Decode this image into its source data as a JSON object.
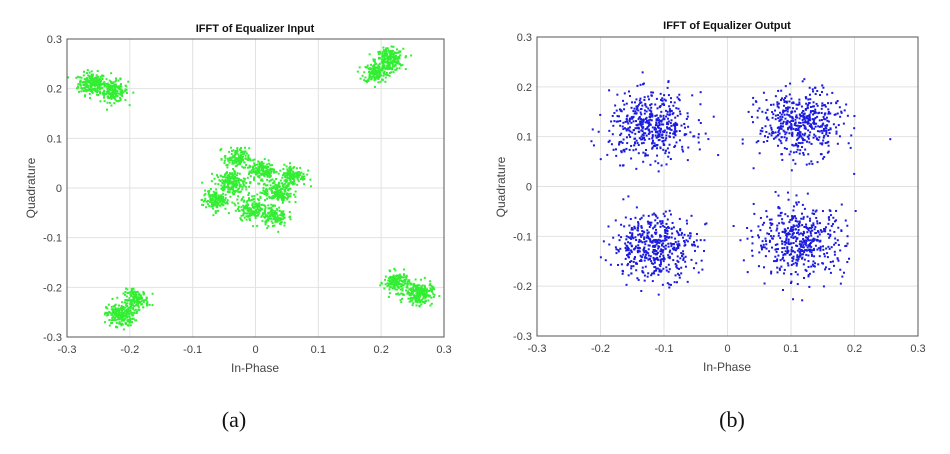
{
  "chart_data": [
    {
      "type": "scatter",
      "title": "IFFT of Equalizer Input",
      "xlabel": "In-Phase",
      "ylabel": "Quadrature",
      "xlim": [
        -0.3,
        0.3
      ],
      "ylim": [
        -0.3,
        0.3
      ],
      "xticks": [
        "-0.3",
        "-0.2",
        "-0.1",
        "0",
        "0.1",
        "0.2",
        "0.3"
      ],
      "yticks": [
        "-0.3",
        "-0.2",
        "-0.1",
        "0",
        "0.1",
        "0.2",
        "0.3"
      ],
      "grid": true,
      "color": "#33ee33",
      "caption": "(a)",
      "clusters": [
        {
          "x": -0.26,
          "y": 0.21,
          "spread": 0.011,
          "n": 220
        },
        {
          "x": -0.225,
          "y": 0.195,
          "spread": 0.011,
          "n": 160
        },
        {
          "x": 0.213,
          "y": 0.258,
          "spread": 0.011,
          "n": 220
        },
        {
          "x": 0.192,
          "y": 0.232,
          "spread": 0.01,
          "n": 150
        },
        {
          "x": -0.215,
          "y": -0.256,
          "spread": 0.011,
          "n": 220
        },
        {
          "x": -0.19,
          "y": -0.225,
          "spread": 0.01,
          "n": 150
        },
        {
          "x": 0.225,
          "y": -0.19,
          "spread": 0.01,
          "n": 160
        },
        {
          "x": 0.26,
          "y": -0.213,
          "spread": 0.011,
          "n": 220
        },
        {
          "x": -0.03,
          "y": 0.06,
          "spread": 0.01,
          "n": 130
        },
        {
          "x": 0.01,
          "y": 0.035,
          "spread": 0.011,
          "n": 150
        },
        {
          "x": 0.06,
          "y": 0.025,
          "spread": 0.01,
          "n": 130
        },
        {
          "x": -0.04,
          "y": 0.01,
          "spread": 0.012,
          "n": 180
        },
        {
          "x": -0.065,
          "y": -0.025,
          "spread": 0.01,
          "n": 130
        },
        {
          "x": 0.035,
          "y": -0.008,
          "spread": 0.012,
          "n": 180
        },
        {
          "x": -0.005,
          "y": -0.04,
          "spread": 0.012,
          "n": 170
        },
        {
          "x": 0.03,
          "y": -0.057,
          "spread": 0.01,
          "n": 120
        }
      ]
    },
    {
      "type": "scatter",
      "title": "IFFT of Equalizer Output",
      "xlabel": "In-Phase",
      "ylabel": "Quadrature",
      "xlim": [
        -0.3,
        0.3
      ],
      "ylim": [
        -0.3,
        0.3
      ],
      "xticks": [
        "-0.3",
        "-0.2",
        "-0.1",
        "0",
        "0.1",
        "0.2",
        "0.3"
      ],
      "yticks": [
        "-0.3",
        "-0.2",
        "-0.1",
        "0",
        "0.1",
        "0.2",
        "0.3"
      ],
      "grid": true,
      "color": "#1a1ae0",
      "caption": "(b)",
      "clusters": [
        {
          "x": -0.12,
          "y": 0.12,
          "spread": 0.033,
          "n": 480
        },
        {
          "x": 0.115,
          "y": 0.125,
          "spread": 0.033,
          "n": 480
        },
        {
          "x": -0.115,
          "y": -0.12,
          "spread": 0.033,
          "n": 480
        },
        {
          "x": 0.115,
          "y": -0.11,
          "spread": 0.035,
          "n": 480
        }
      ]
    }
  ]
}
